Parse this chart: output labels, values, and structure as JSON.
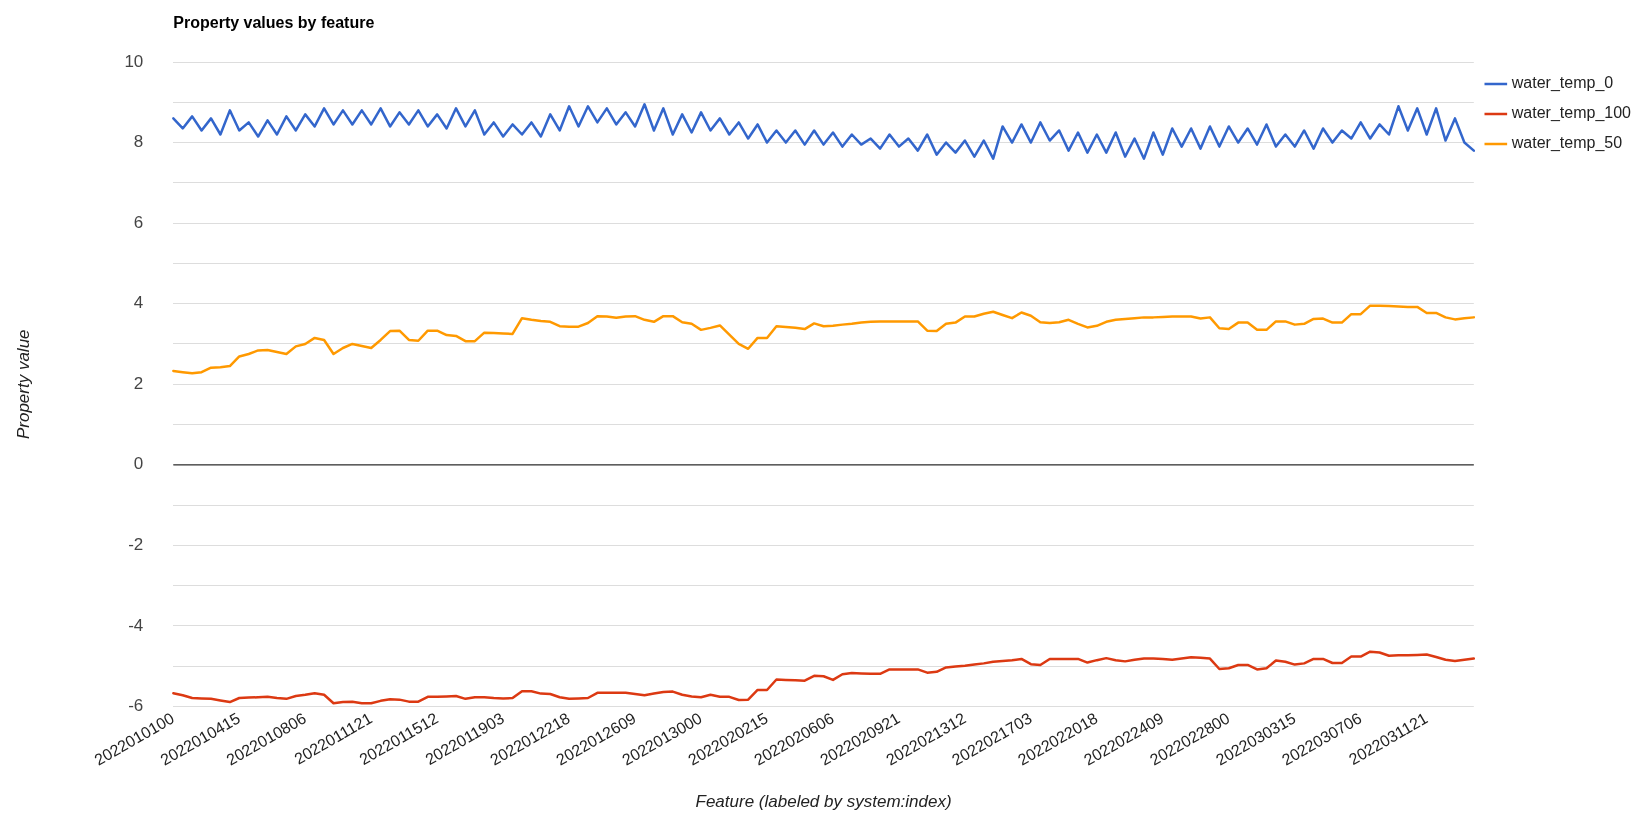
{
  "chart_data": {
    "type": "line",
    "title": "Property values by feature",
    "xlabel": "Feature (labeled by system:index)",
    "ylabel": "Property value",
    "categories": [
      "2022010100",
      null,
      null,
      null,
      null,
      null,
      null,
      "2022010415",
      null,
      null,
      null,
      null,
      null,
      null,
      "2022010806",
      null,
      null,
      null,
      null,
      null,
      null,
      "2022011121",
      null,
      null,
      null,
      null,
      null,
      null,
      "2022011512",
      null,
      null,
      null,
      null,
      null,
      null,
      "2022011903",
      null,
      null,
      null,
      null,
      null,
      null,
      "2022012218",
      null,
      null,
      null,
      null,
      null,
      null,
      "2022012609",
      null,
      null,
      null,
      null,
      null,
      null,
      "2022013000",
      null,
      null,
      null,
      null,
      null,
      null,
      "2022020215",
      null,
      null,
      null,
      null,
      null,
      null,
      "2022020606",
      null,
      null,
      null,
      null,
      null,
      null,
      "2022020921",
      null,
      null,
      null,
      null,
      null,
      null,
      "2022021312",
      null,
      null,
      null,
      null,
      null,
      null,
      "2022021703",
      null,
      null,
      null,
      null,
      null,
      null,
      "2022022018",
      null,
      null,
      null,
      null,
      null,
      null,
      "2022022409",
      null,
      null,
      null,
      null,
      null,
      null,
      "2022022800",
      null,
      null,
      null,
      null,
      null,
      null,
      "2022030315",
      null,
      null,
      null,
      null,
      null,
      null,
      "2022030706",
      null,
      null,
      null,
      null,
      null,
      null,
      "2022031121",
      null,
      null,
      null,
      null,
      null
    ],
    "ylim": [
      -6,
      10
    ],
    "yticks": [
      -6,
      {
        "value": -5,
        "label": null
      },
      -4,
      {
        "value": -3,
        "label": null
      },
      -2,
      {
        "value": -1,
        "label": null
      },
      0,
      {
        "value": 1,
        "label": null
      },
      2,
      {
        "value": 3,
        "label": null
      },
      4,
      {
        "value": 5,
        "label": null
      },
      6,
      {
        "value": 7,
        "label": null
      },
      8,
      {
        "value": 9,
        "label": null
      },
      10
    ],
    "grid": "y",
    "legend": "right",
    "ref_lines": [
      {
        "axis": "y",
        "value": 0,
        "color": "#333333"
      }
    ],
    "series": [
      {
        "name": "water_temp_0",
        "color": "#3366cc",
        "values": [
          8.6,
          8.35,
          8.65,
          8.3,
          8.6,
          8.2,
          8.8,
          8.3,
          8.5,
          8.15,
          8.55,
          8.2,
          8.65,
          8.3,
          8.7,
          8.4,
          8.85,
          8.45,
          8.8,
          8.45,
          8.8,
          8.45,
          8.85,
          8.4,
          8.75,
          8.45,
          8.8,
          8.4,
          8.7,
          8.35,
          8.85,
          8.4,
          8.8,
          8.2,
          8.5,
          8.15,
          8.45,
          8.2,
          8.5,
          8.15,
          8.7,
          8.3,
          8.9,
          8.4,
          8.9,
          8.5,
          8.85,
          8.45,
          8.75,
          8.4,
          8.95,
          8.3,
          8.85,
          8.2,
          8.7,
          8.25,
          8.75,
          8.3,
          8.6,
          8.2,
          8.5,
          8.1,
          8.45,
          8.0,
          8.3,
          8.0,
          8.3,
          7.95,
          8.3,
          7.95,
          8.25,
          7.9,
          8.2,
          7.95,
          8.1,
          7.85,
          8.2,
          7.9,
          8.1,
          7.8,
          8.2,
          7.7,
          8.0,
          7.75,
          8.05,
          7.65,
          8.05,
          7.6,
          8.4,
          8.0,
          8.45,
          8.0,
          8.5,
          8.05,
          8.3,
          7.8,
          8.25,
          7.75,
          8.2,
          7.75,
          8.25,
          7.65,
          8.1,
          7.6,
          8.25,
          7.7,
          8.35,
          7.9,
          8.35,
          7.85,
          8.4,
          7.9,
          8.4,
          8.0,
          8.35,
          7.95,
          8.45,
          7.9,
          8.2,
          7.9,
          8.3,
          7.85,
          8.35,
          8.0,
          8.3,
          8.1,
          8.5,
          8.1,
          8.45,
          8.2,
          8.9,
          8.3,
          8.85,
          8.2,
          8.85,
          8.05,
          8.6,
          8.0,
          7.8
        ]
      },
      {
        "name": "water_temp_100",
        "color": "#dc3912",
        "values": [
          -5.67,
          -5.72,
          -5.79,
          -5.8,
          -5.81,
          -5.85,
          -5.89,
          -5.79,
          -5.78,
          -5.77,
          -5.76,
          -5.79,
          -5.81,
          -5.74,
          -5.71,
          -5.67,
          -5.71,
          -5.92,
          -5.89,
          -5.88,
          -5.92,
          -5.92,
          -5.86,
          -5.82,
          -5.83,
          -5.88,
          -5.88,
          -5.76,
          -5.76,
          -5.75,
          -5.74,
          -5.81,
          -5.77,
          -5.77,
          -5.79,
          -5.8,
          -5.79,
          -5.62,
          -5.62,
          -5.68,
          -5.69,
          -5.77,
          -5.81,
          -5.8,
          -5.79,
          -5.66,
          -5.66,
          -5.66,
          -5.66,
          -5.69,
          -5.72,
          -5.68,
          -5.64,
          -5.63,
          -5.71,
          -5.75,
          -5.77,
          -5.71,
          -5.76,
          -5.76,
          -5.84,
          -5.83,
          -5.59,
          -5.59,
          -5.33,
          -5.34,
          -5.35,
          -5.36,
          -5.24,
          -5.25,
          -5.34,
          -5.2,
          -5.17,
          -5.18,
          -5.19,
          -5.19,
          -5.08,
          -5.08,
          -5.08,
          -5.08,
          -5.16,
          -5.14,
          -5.03,
          -5.01,
          -4.99,
          -4.96,
          -4.93,
          -4.89,
          -4.87,
          -4.85,
          -4.82,
          -4.95,
          -4.97,
          -4.82,
          -4.82,
          -4.82,
          -4.82,
          -4.91,
          -4.85,
          -4.8,
          -4.85,
          -4.88,
          -4.84,
          -4.81,
          -4.81,
          -4.82,
          -4.84,
          -4.81,
          -4.78,
          -4.79,
          -4.81,
          -5.07,
          -5.05,
          -4.97,
          -4.97,
          -5.08,
          -5.05,
          -4.86,
          -4.89,
          -4.96,
          -4.93,
          -4.82,
          -4.82,
          -4.92,
          -4.92,
          -4.76,
          -4.76,
          -4.64,
          -4.66,
          -4.74,
          -4.73,
          -4.73,
          -4.72,
          -4.71,
          -4.77,
          -4.84,
          -4.87,
          -4.84,
          -4.81
        ]
      },
      {
        "name": "water_temp_50",
        "color": "#ff9900",
        "values": [
          2.33,
          2.3,
          2.27,
          2.3,
          2.41,
          2.42,
          2.45,
          2.69,
          2.75,
          2.84,
          2.85,
          2.8,
          2.75,
          2.94,
          3.0,
          3.15,
          3.1,
          2.75,
          2.9,
          3.0,
          2.95,
          2.9,
          3.1,
          3.32,
          3.33,
          3.1,
          3.08,
          3.33,
          3.33,
          3.22,
          3.2,
          3.07,
          3.07,
          3.28,
          3.27,
          3.26,
          3.25,
          3.64,
          3.6,
          3.57,
          3.55,
          3.44,
          3.43,
          3.43,
          3.52,
          3.69,
          3.68,
          3.65,
          3.68,
          3.69,
          3.6,
          3.55,
          3.69,
          3.69,
          3.54,
          3.5,
          3.35,
          3.4,
          3.46,
          3.23,
          3.0,
          2.88,
          3.15,
          3.15,
          3.44,
          3.42,
          3.4,
          3.37,
          3.51,
          3.44,
          3.45,
          3.48,
          3.5,
          3.53,
          3.55,
          3.56,
          3.56,
          3.56,
          3.56,
          3.56,
          3.33,
          3.32,
          3.5,
          3.53,
          3.68,
          3.68,
          3.75,
          3.8,
          3.72,
          3.64,
          3.78,
          3.7,
          3.54,
          3.52,
          3.54,
          3.6,
          3.5,
          3.41,
          3.45,
          3.55,
          3.6,
          3.62,
          3.64,
          3.66,
          3.66,
          3.67,
          3.68,
          3.68,
          3.68,
          3.63,
          3.66,
          3.39,
          3.37,
          3.53,
          3.53,
          3.35,
          3.35,
          3.56,
          3.56,
          3.48,
          3.5,
          3.62,
          3.63,
          3.53,
          3.53,
          3.74,
          3.74,
          3.95,
          3.95,
          3.94,
          3.93,
          3.92,
          3.92,
          3.77,
          3.77,
          3.66,
          3.61,
          3.64,
          3.66
        ]
      }
    ]
  }
}
